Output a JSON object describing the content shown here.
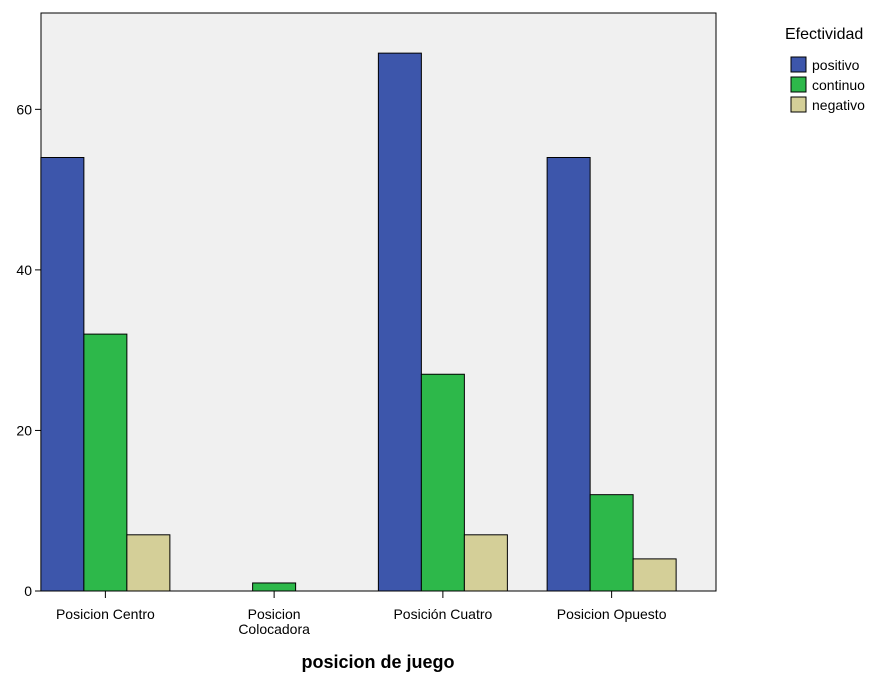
{
  "chart_data": {
    "type": "bar",
    "categories": [
      [
        "Posicion Centro"
      ],
      [
        "Posicion",
        "Colocadora"
      ],
      [
        "Posición Cuatro"
      ],
      [
        "Posicion Opuesto"
      ]
    ],
    "series": [
      {
        "name": "positivo",
        "color": "#3d56ab",
        "values": [
          54,
          0,
          67,
          54
        ]
      },
      {
        "name": "continuo",
        "color": "#2db84a",
        "values": [
          32,
          1,
          27,
          12
        ]
      },
      {
        "name": "negativo",
        "color": "#d4cf98",
        "values": [
          7,
          0,
          7,
          4
        ]
      }
    ],
    "title": "",
    "xlabel": "posicion de juego",
    "ylabel": "",
    "ylim": [
      0,
      72
    ],
    "yticks": [
      0,
      20,
      40,
      60
    ],
    "legend": {
      "title": "Efectividad",
      "placement": "right"
    },
    "grid": false,
    "plot_background": "#f0f0f0"
  }
}
